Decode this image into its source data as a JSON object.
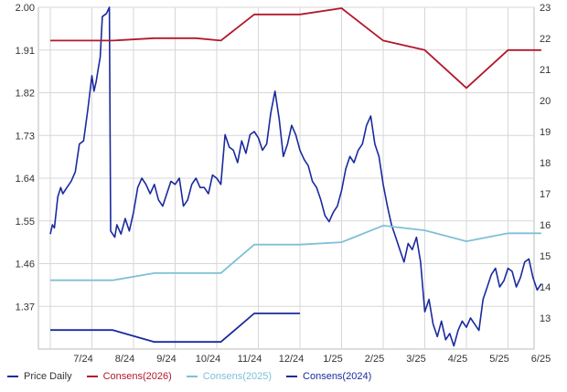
{
  "chart_data": {
    "type": "line",
    "title": "",
    "xlabel": "",
    "ylabel": "",
    "x_ticks": [
      "7/24",
      "8/24",
      "9/24",
      "10/24",
      "11/24",
      "12/24",
      "1/25",
      "2/25",
      "3/25",
      "4/25",
      "5/25",
      "6/25"
    ],
    "y_left": {
      "ticks": [
        "2.00",
        "1.91",
        "1.82",
        "1.73",
        "1.64",
        "1.55",
        "1.46",
        "1.37"
      ],
      "range": [
        1.28,
        2.0
      ]
    },
    "y_right": {
      "ticks": [
        "23",
        "22",
        "21",
        "20",
        "19",
        "18",
        "17",
        "16",
        "15",
        "14",
        "13"
      ],
      "range": [
        12.0,
        23.0
      ]
    },
    "grid": true,
    "legend_position": "bottom",
    "series": [
      {
        "name": "Price Daily",
        "color": "#1a2a9e",
        "axis": "right",
        "points": [
          [
            0.0,
            15.7
          ],
          [
            0.05,
            16.0
          ],
          [
            0.1,
            15.9
          ],
          [
            0.18,
            16.9
          ],
          [
            0.25,
            17.2
          ],
          [
            0.3,
            17.0
          ],
          [
            0.4,
            17.2
          ],
          [
            0.5,
            17.4
          ],
          [
            0.6,
            17.7
          ],
          [
            0.7,
            18.6
          ],
          [
            0.8,
            18.7
          ],
          [
            0.9,
            19.7
          ],
          [
            1.0,
            20.8
          ],
          [
            1.05,
            20.3
          ],
          [
            1.1,
            20.6
          ],
          [
            1.15,
            21.0
          ],
          [
            1.2,
            21.4
          ],
          [
            1.25,
            22.7
          ],
          [
            1.35,
            22.8
          ],
          [
            1.42,
            23.0
          ],
          [
            1.45,
            15.8
          ],
          [
            1.55,
            15.6
          ],
          [
            1.6,
            16.0
          ],
          [
            1.7,
            15.7
          ],
          [
            1.8,
            16.2
          ],
          [
            1.9,
            15.8
          ],
          [
            2.0,
            16.4
          ],
          [
            2.1,
            17.2
          ],
          [
            2.2,
            17.5
          ],
          [
            2.3,
            17.3
          ],
          [
            2.4,
            17.0
          ],
          [
            2.5,
            17.3
          ],
          [
            2.6,
            16.8
          ],
          [
            2.7,
            16.6
          ],
          [
            2.8,
            17.0
          ],
          [
            2.9,
            17.4
          ],
          [
            3.0,
            17.3
          ],
          [
            3.1,
            17.5
          ],
          [
            3.2,
            16.6
          ],
          [
            3.3,
            16.8
          ],
          [
            3.4,
            17.3
          ],
          [
            3.5,
            17.5
          ],
          [
            3.6,
            17.2
          ],
          [
            3.7,
            17.2
          ],
          [
            3.8,
            17.0
          ],
          [
            3.9,
            17.6
          ],
          [
            4.0,
            17.5
          ],
          [
            4.1,
            17.3
          ],
          [
            4.2,
            18.9
          ],
          [
            4.3,
            18.5
          ],
          [
            4.4,
            18.4
          ],
          [
            4.5,
            18.0
          ],
          [
            4.6,
            18.7
          ],
          [
            4.7,
            18.3
          ],
          [
            4.8,
            18.9
          ],
          [
            4.9,
            19.0
          ],
          [
            5.0,
            18.8
          ],
          [
            5.1,
            18.4
          ],
          [
            5.2,
            18.6
          ],
          [
            5.3,
            19.6
          ],
          [
            5.4,
            20.3
          ],
          [
            5.5,
            19.4
          ],
          [
            5.6,
            18.2
          ],
          [
            5.7,
            18.6
          ],
          [
            5.8,
            19.2
          ],
          [
            5.9,
            18.9
          ],
          [
            6.0,
            18.4
          ],
          [
            6.1,
            18.1
          ],
          [
            6.2,
            17.9
          ],
          [
            6.3,
            17.4
          ],
          [
            6.4,
            17.2
          ],
          [
            6.5,
            16.8
          ],
          [
            6.6,
            16.3
          ],
          [
            6.7,
            16.1
          ],
          [
            6.8,
            16.4
          ],
          [
            6.9,
            16.6
          ],
          [
            7.0,
            17.1
          ],
          [
            7.1,
            17.8
          ],
          [
            7.2,
            18.2
          ],
          [
            7.3,
            18.0
          ],
          [
            7.4,
            18.4
          ],
          [
            7.5,
            18.6
          ],
          [
            7.6,
            19.2
          ],
          [
            7.7,
            19.5
          ],
          [
            7.8,
            18.6
          ],
          [
            7.9,
            18.2
          ],
          [
            8.0,
            17.3
          ],
          [
            8.1,
            16.6
          ],
          [
            8.2,
            16.0
          ],
          [
            8.3,
            15.6
          ],
          [
            8.4,
            15.2
          ],
          [
            8.5,
            14.8
          ],
          [
            8.6,
            15.4
          ],
          [
            8.7,
            15.2
          ],
          [
            8.8,
            15.6
          ],
          [
            8.9,
            14.8
          ],
          [
            9.0,
            13.2
          ],
          [
            9.1,
            13.6
          ],
          [
            9.2,
            12.8
          ],
          [
            9.3,
            12.4
          ],
          [
            9.4,
            12.9
          ],
          [
            9.5,
            12.3
          ],
          [
            9.6,
            12.5
          ],
          [
            9.7,
            12.1
          ],
          [
            9.8,
            12.6
          ],
          [
            9.9,
            12.9
          ],
          [
            10.0,
            12.7
          ],
          [
            10.1,
            13.0
          ],
          [
            10.2,
            12.8
          ],
          [
            10.3,
            12.6
          ],
          [
            10.4,
            13.6
          ],
          [
            10.5,
            14.0
          ],
          [
            10.6,
            14.4
          ],
          [
            10.7,
            14.6
          ],
          [
            10.8,
            14.0
          ],
          [
            10.9,
            14.2
          ],
          [
            11.0,
            14.6
          ],
          [
            11.1,
            14.5
          ],
          [
            11.2,
            14.0
          ],
          [
            11.3,
            14.3
          ],
          [
            11.4,
            14.8
          ],
          [
            11.5,
            14.9
          ],
          [
            11.6,
            14.3
          ],
          [
            11.7,
            13.9
          ],
          [
            11.8,
            14.1
          ]
        ]
      },
      {
        "name": "Consens(2026)",
        "color": "#b2182b",
        "axis": "left",
        "points": [
          [
            0.0,
            1.93
          ],
          [
            1.5,
            1.93
          ],
          [
            2.5,
            1.935
          ],
          [
            3.5,
            1.935
          ],
          [
            4.1,
            1.93
          ],
          [
            4.9,
            1.985
          ],
          [
            6.0,
            1.985
          ],
          [
            7.0,
            1.998
          ],
          [
            8.0,
            1.93
          ],
          [
            9.0,
            1.91
          ],
          [
            10.0,
            1.83
          ],
          [
            11.0,
            1.91
          ],
          [
            11.8,
            1.91
          ]
        ]
      },
      {
        "name": "Consens(2025)",
        "color": "#7ec0d8",
        "axis": "left",
        "points": [
          [
            0.0,
            1.425
          ],
          [
            1.5,
            1.425
          ],
          [
            2.5,
            1.44
          ],
          [
            3.5,
            1.44
          ],
          [
            4.1,
            1.44
          ],
          [
            4.9,
            1.5
          ],
          [
            6.0,
            1.5
          ],
          [
            7.0,
            1.505
          ],
          [
            8.0,
            1.54
          ],
          [
            9.0,
            1.53
          ],
          [
            10.0,
            1.507
          ],
          [
            11.0,
            1.524
          ],
          [
            11.8,
            1.524
          ]
        ]
      },
      {
        "name": "Consens(2024)",
        "color": "#1a2a9e",
        "axis": "left",
        "points": [
          [
            0.0,
            1.32
          ],
          [
            1.5,
            1.32
          ],
          [
            2.5,
            1.295
          ],
          [
            3.5,
            1.295
          ],
          [
            4.1,
            1.295
          ],
          [
            4.9,
            1.355
          ],
          [
            6.0,
            1.355
          ]
        ]
      }
    ]
  }
}
